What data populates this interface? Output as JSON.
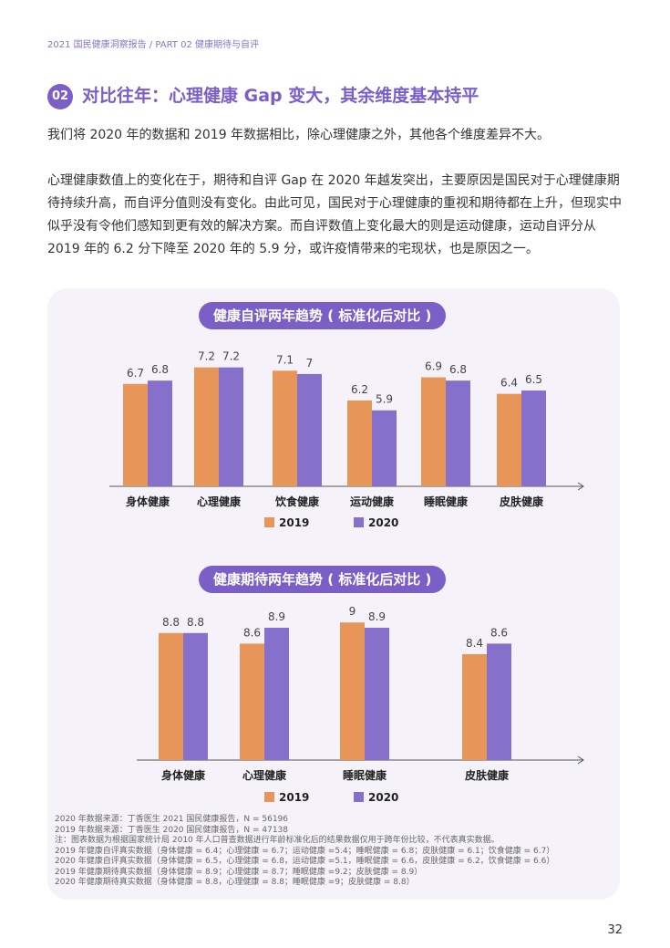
{
  "breadcrumb": "2021 国民健康洞察报告 / PART 02 健康期待与自评",
  "heading": {
    "number": "02",
    "title": "对比往年：心理健康 Gap 变大，其余维度基本持平"
  },
  "paragraphs": [
    "我们将 2020 年的数据和 2019 年数据相比，除心理健康之外，其他各个维度差异不大。",
    "心理健康数值上的变化在于，期待和自评 Gap 在 2020 年越发突出，主要原因是国民对于心理健康期待持续升高，而自评分值则没有变化。由此可见，国民对于心理健康的重视和期待都在上升，但现实中似乎没有令他们感知到更有效的解决方案。而自评数值上变化最大的则是运动健康，运动自评分从 2019 年的 6.2 分下降至 2020 年的 5.9 分，或许疫情带来的宅现状，也是原因之一。"
  ],
  "colors": {
    "s2019": "#e8955a",
    "s2020": "#8670cb",
    "accent": "#7b5fc7"
  },
  "chart_data": [
    {
      "type": "bar",
      "title": "健康自评两年趋势 ( 标准化后对比 )",
      "categories": [
        "身体健康",
        "心理健康",
        "饮食健康",
        "运动健康",
        "睡眠健康",
        "皮肤健康"
      ],
      "series": [
        {
          "name": "2019",
          "values": [
            6.7,
            7.2,
            7.1,
            6.2,
            6.9,
            6.4
          ]
        },
        {
          "name": "2020",
          "values": [
            6.8,
            7.2,
            7,
            5.9,
            6.8,
            6.5
          ]
        }
      ],
      "legend": "bottom"
    },
    {
      "type": "bar",
      "title": "健康期待两年趋势 ( 标准化后对比 )",
      "categories": [
        "身体健康",
        "心理健康",
        "睡眠健康",
        "皮肤健康"
      ],
      "series": [
        {
          "name": "2019",
          "values": [
            8.8,
            8.6,
            9,
            8.4
          ]
        },
        {
          "name": "2020",
          "values": [
            8.8,
            8.9,
            8.9,
            8.6
          ]
        }
      ],
      "legend": "bottom"
    }
  ],
  "notes": [
    "2020 年数据来源：丁香医生 2021 国民健康报告，N = 56196",
    "2019 年数据来源：丁香医生 2020 国民健康报告，N = 47138",
    "注：图表数据为根据国家统计局 2010 年人口普查数据进行年龄标准化后的结果数据仅用于跨年份比较，不代表真实数据。",
    "2019 年健康自评真实数据（身体健康 = 6.4；心理健康 = 6.7；运动健康 =5.4；睡眠健康 = 6.8；皮肤健康 = 6.1；饮食健康 = 6.7）",
    "2020 年健康自评真实数据（身体健康 = 6.5，心理健康 = 6.8，运动健康 =5.1，睡眠健康 = 6.6，皮肤健康 = 6.2，饮食健康 = 6.6）",
    "2019 年健康期待真实数据（身体健康 = 8.9；心理健康 = 8.7；睡眠健康 =9.2；皮肤健康 = 8.9）",
    "2020 年健康期待真实数据（身体健康 = 8.8，心理健康 = 8.8；睡眠健康 =9；皮肤健康 = 8.8）"
  ],
  "page_number": "32"
}
